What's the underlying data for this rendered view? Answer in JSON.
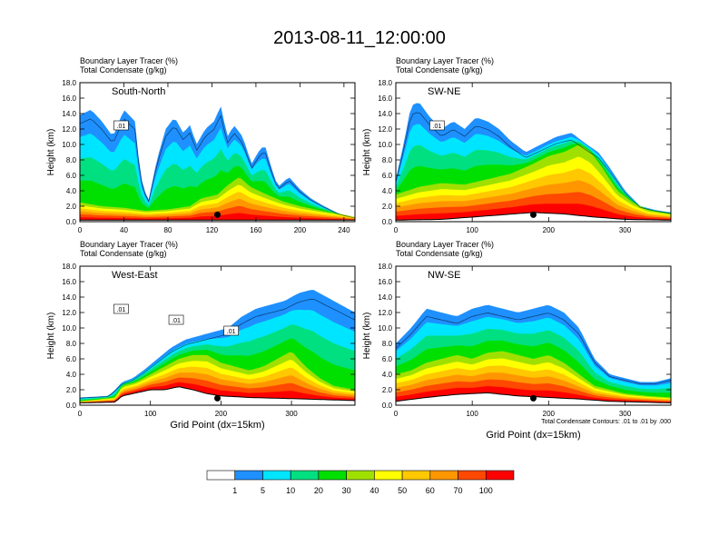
{
  "title": "2013-08-11_12:00:00",
  "colorbar": {
    "labels": [
      "1",
      "5",
      "10",
      "20",
      "30",
      "40",
      "50",
      "60",
      "70",
      "100"
    ],
    "colors": [
      "#ffffff",
      "#1e90ff",
      "#00e5ff",
      "#00e080",
      "#00e000",
      "#a0e000",
      "#ffff00",
      "#ffc800",
      "#ff9600",
      "#ff4800",
      "#ff0000"
    ]
  },
  "chart_data": [
    {
      "type": "heatmap",
      "subtitle1": "Boundary Layer Tracer   (%)",
      "subtitle2": "Total Condensate   (g/kg)",
      "panel_label": "South-North",
      "ylabel": "Height (km)",
      "xlabel": "",
      "xticks": [
        0,
        40,
        80,
        120,
        160,
        200,
        240
      ],
      "xlim": [
        0,
        250
      ],
      "yticks": [
        "0.0",
        "2.0",
        "4.0",
        "6.0",
        "8.0",
        "10.0",
        "12.0",
        "14.0",
        "16.0",
        "18.0"
      ],
      "ylim": [
        0,
        18
      ],
      "contour_labels": [
        ".01"
      ],
      "location_marker_x": 125,
      "footnote": "",
      "plume": {
        "tracer_top_km": [
          [
            0,
            13.8
          ],
          [
            10,
            14.5
          ],
          [
            20,
            13
          ],
          [
            30,
            11
          ],
          [
            40,
            14.5
          ],
          [
            50,
            13
          ],
          [
            55,
            6
          ],
          [
            62,
            2.5
          ],
          [
            70,
            8
          ],
          [
            78,
            12
          ],
          [
            86,
            13.5
          ],
          [
            94,
            11.5
          ],
          [
            100,
            12.5
          ],
          [
            106,
            10
          ],
          [
            114,
            12
          ],
          [
            122,
            13
          ],
          [
            128,
            15
          ],
          [
            134,
            11
          ],
          [
            140,
            12.5
          ],
          [
            148,
            11
          ],
          [
            156,
            7.5
          ],
          [
            162,
            9
          ],
          [
            168,
            10
          ],
          [
            174,
            7
          ],
          [
            180,
            4.5
          ],
          [
            190,
            5.8
          ],
          [
            200,
            4.2
          ],
          [
            210,
            3
          ],
          [
            222,
            2
          ],
          [
            236,
            1
          ],
          [
            250,
            0.5
          ]
        ],
        "core_top_km": [
          [
            0,
            2.5
          ],
          [
            20,
            2
          ],
          [
            40,
            1.8
          ],
          [
            60,
            1.4
          ],
          [
            80,
            1.6
          ],
          [
            100,
            2
          ],
          [
            110,
            3
          ],
          [
            125,
            3.5
          ],
          [
            135,
            4.8
          ],
          [
            145,
            5.8
          ],
          [
            155,
            4.5
          ],
          [
            170,
            3.5
          ],
          [
            185,
            2.6
          ],
          [
            200,
            2
          ],
          [
            220,
            1.4
          ],
          [
            240,
            0.9
          ],
          [
            250,
            0.6
          ]
        ],
        "terrain_km": [
          [
            0,
            0.2
          ],
          [
            250,
            0.2
          ]
        ]
      }
    },
    {
      "type": "heatmap",
      "subtitle1": "Boundary Layer Tracer   (%)",
      "subtitle2": "Total Condensate   (g/kg)",
      "panel_label": "SW-NE",
      "ylabel": "Height (km)",
      "xlabel": "",
      "xticks": [
        0,
        100,
        200,
        300
      ],
      "xlim": [
        0,
        360
      ],
      "yticks": [
        "0.0",
        "2.0",
        "4.0",
        "6.0",
        "8.0",
        "10.0",
        "12.0",
        "14.0",
        "16.0",
        "18.0"
      ],
      "ylim": [
        0,
        18
      ],
      "contour_labels": [
        ".01"
      ],
      "location_marker_x": 180,
      "footnote": "",
      "plume": {
        "tracer_top_km": [
          [
            0,
            5.5
          ],
          [
            10,
            10
          ],
          [
            20,
            15
          ],
          [
            30,
            15.5
          ],
          [
            45,
            13.5
          ],
          [
            60,
            12
          ],
          [
            75,
            13
          ],
          [
            90,
            12
          ],
          [
            105,
            13.5
          ],
          [
            120,
            13
          ],
          [
            135,
            12
          ],
          [
            150,
            10.5
          ],
          [
            170,
            9
          ],
          [
            190,
            10
          ],
          [
            210,
            11
          ],
          [
            230,
            11.5
          ],
          [
            250,
            10
          ],
          [
            265,
            9
          ],
          [
            280,
            7
          ],
          [
            290,
            5.5
          ],
          [
            300,
            4
          ],
          [
            310,
            3
          ],
          [
            320,
            2
          ],
          [
            340,
            1.5
          ],
          [
            360,
            1.2
          ]
        ],
        "core_top_km": [
          [
            0,
            3.5
          ],
          [
            30,
            4.5
          ],
          [
            60,
            5
          ],
          [
            90,
            4.8
          ],
          [
            120,
            5.5
          ],
          [
            150,
            6.2
          ],
          [
            180,
            7.5
          ],
          [
            200,
            8.5
          ],
          [
            220,
            9
          ],
          [
            240,
            10
          ],
          [
            255,
            9
          ],
          [
            270,
            7
          ],
          [
            290,
            4
          ],
          [
            310,
            2.5
          ],
          [
            330,
            1.5
          ],
          [
            360,
            1
          ]
        ],
        "terrain_km": [
          [
            0,
            0.2
          ],
          [
            60,
            0.3
          ],
          [
            100,
            0.6
          ],
          [
            140,
            0.9
          ],
          [
            180,
            1.2
          ],
          [
            220,
            1
          ],
          [
            260,
            0.6
          ],
          [
            300,
            0.3
          ],
          [
            360,
            0.2
          ]
        ]
      }
    },
    {
      "type": "heatmap",
      "subtitle1": "Boundary Layer Tracer   (%)",
      "subtitle2": "Total Condensate   (g/kg)",
      "panel_label": "West-East",
      "ylabel": "Height (km)",
      "xlabel": "Grid Point (dx=15km)",
      "xticks": [
        0,
        100,
        200,
        300
      ],
      "xlim": [
        0,
        390
      ],
      "yticks": [
        "0.0",
        "2.0",
        "4.0",
        "6.0",
        "8.0",
        "10.0",
        "12.0",
        "14.0",
        "16.0",
        "18.0"
      ],
      "ylim": [
        0,
        18
      ],
      "contour_labels": [
        ".01",
        ".01",
        ".01"
      ],
      "location_marker_x": 195,
      "footnote": "",
      "plume": {
        "tracer_top_km": [
          [
            0,
            1
          ],
          [
            40,
            1.2
          ],
          [
            50,
            2
          ],
          [
            60,
            3
          ],
          [
            75,
            3.5
          ],
          [
            90,
            4.5
          ],
          [
            110,
            6
          ],
          [
            130,
            7.5
          ],
          [
            150,
            8.5
          ],
          [
            170,
            9
          ],
          [
            190,
            9.5
          ],
          [
            210,
            10
          ],
          [
            230,
            11.5
          ],
          [
            250,
            12.5
          ],
          [
            270,
            13
          ],
          [
            290,
            13.5
          ],
          [
            310,
            14.5
          ],
          [
            330,
            15
          ],
          [
            350,
            14
          ],
          [
            370,
            13
          ],
          [
            390,
            12
          ]
        ],
        "core_top_km": [
          [
            0,
            0.5
          ],
          [
            50,
            1
          ],
          [
            60,
            2.5
          ],
          [
            80,
            3
          ],
          [
            100,
            4
          ],
          [
            120,
            5
          ],
          [
            140,
            6
          ],
          [
            160,
            6.5
          ],
          [
            180,
            6.5
          ],
          [
            200,
            5.5
          ],
          [
            220,
            5
          ],
          [
            240,
            4.5
          ],
          [
            260,
            5
          ],
          [
            280,
            6
          ],
          [
            300,
            7
          ],
          [
            320,
            5
          ],
          [
            340,
            3.5
          ],
          [
            360,
            2.5
          ],
          [
            390,
            2
          ]
        ],
        "terrain_km": [
          [
            0,
            0.3
          ],
          [
            50,
            0.4
          ],
          [
            60,
            1.2
          ],
          [
            80,
            1.6
          ],
          [
            100,
            2
          ],
          [
            120,
            2
          ],
          [
            140,
            2.4
          ],
          [
            160,
            2
          ],
          [
            180,
            1.5
          ],
          [
            200,
            1.2
          ],
          [
            240,
            1
          ],
          [
            280,
            0.9
          ],
          [
            320,
            0.8
          ],
          [
            390,
            0.6
          ]
        ]
      }
    },
    {
      "type": "heatmap",
      "subtitle1": "Boundary Layer Tracer   (%)",
      "subtitle2": "Total Condensate   (g/kg)",
      "panel_label": "NW-SE",
      "ylabel": "Height (km)",
      "xlabel": "Grid Point (dx=15km)",
      "xticks": [
        0,
        100,
        200,
        300
      ],
      "xlim": [
        0,
        360
      ],
      "yticks": [
        "0.0",
        "2.0",
        "4.0",
        "6.0",
        "8.0",
        "10.0",
        "12.0",
        "14.0",
        "16.0",
        "18.0"
      ],
      "ylim": [
        0,
        18
      ],
      "contour_labels": [],
      "location_marker_x": 180,
      "footnote": "Total Condensate Contours: .01 to .01 by .000",
      "plume": {
        "tracer_top_km": [
          [
            0,
            8
          ],
          [
            20,
            10
          ],
          [
            40,
            12.5
          ],
          [
            60,
            12
          ],
          [
            80,
            11.5
          ],
          [
            100,
            12.5
          ],
          [
            120,
            13
          ],
          [
            140,
            12.5
          ],
          [
            160,
            12
          ],
          [
            180,
            12.5
          ],
          [
            200,
            13
          ],
          [
            220,
            12
          ],
          [
            240,
            10
          ],
          [
            250,
            8
          ],
          [
            260,
            6
          ],
          [
            280,
            4
          ],
          [
            300,
            3.5
          ],
          [
            320,
            3
          ],
          [
            340,
            3
          ],
          [
            360,
            3.5
          ]
        ],
        "core_top_km": [
          [
            0,
            4
          ],
          [
            20,
            4.5
          ],
          [
            40,
            5.5
          ],
          [
            60,
            6
          ],
          [
            80,
            6.5
          ],
          [
            100,
            6
          ],
          [
            120,
            6.8
          ],
          [
            140,
            7
          ],
          [
            160,
            6.5
          ],
          [
            180,
            6
          ],
          [
            200,
            6.5
          ],
          [
            220,
            5.5
          ],
          [
            240,
            4
          ],
          [
            260,
            2.5
          ],
          [
            280,
            2
          ],
          [
            300,
            1.5
          ],
          [
            330,
            1.2
          ],
          [
            360,
            1
          ]
        ],
        "terrain_km": [
          [
            0,
            0.5
          ],
          [
            40,
            1
          ],
          [
            80,
            1.4
          ],
          [
            120,
            1.6
          ],
          [
            160,
            1.2
          ],
          [
            200,
            1
          ],
          [
            240,
            0.8
          ],
          [
            280,
            0.5
          ],
          [
            360,
            0.3
          ]
        ]
      }
    }
  ]
}
